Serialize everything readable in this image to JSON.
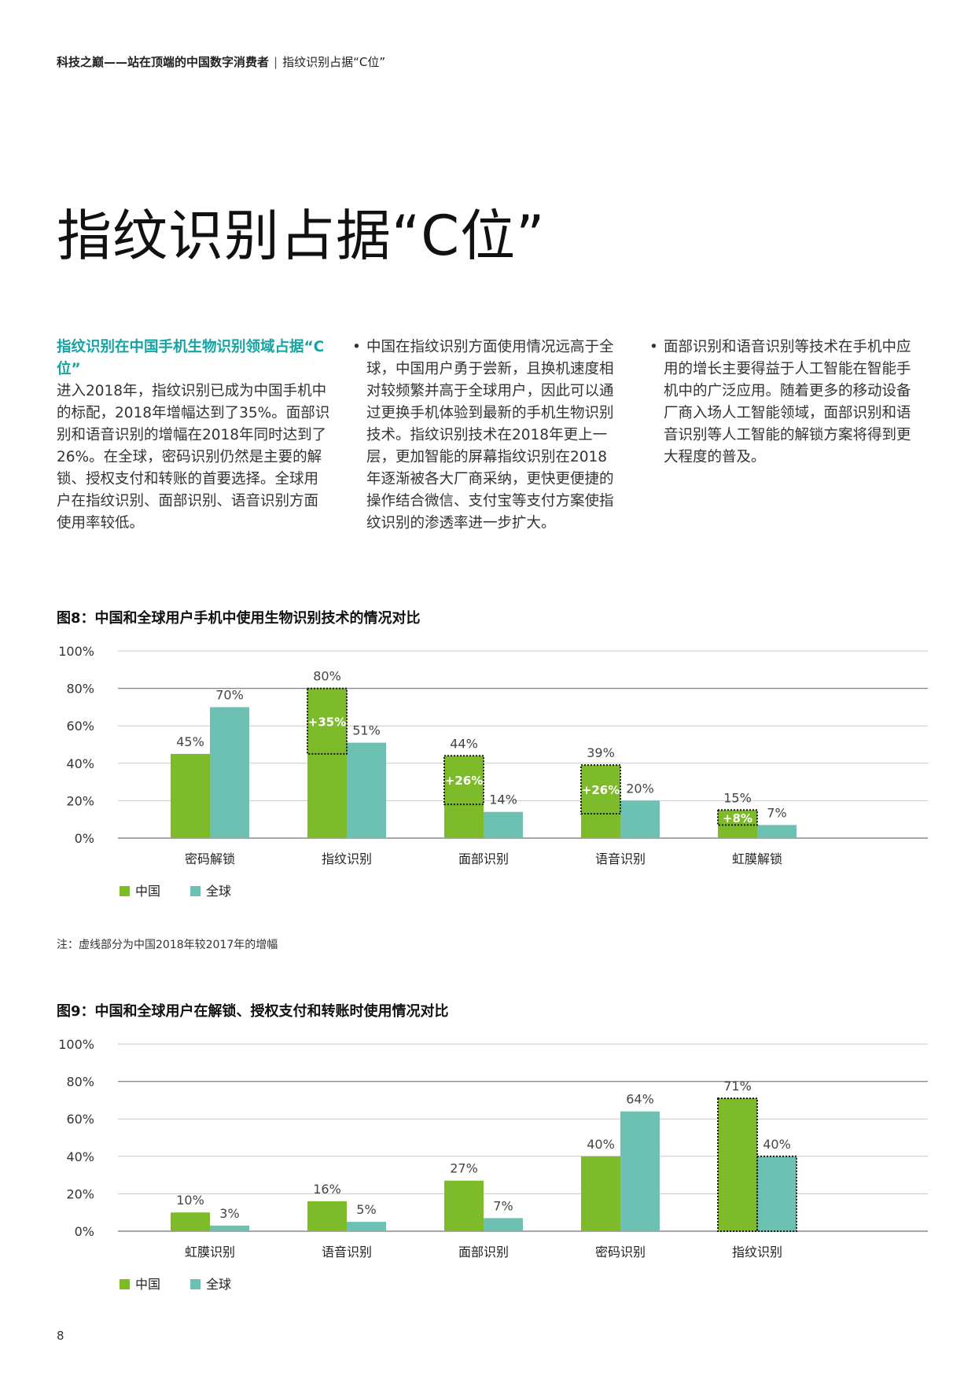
{
  "running_head": {
    "bold": "科技之巅——站在顶端的中国数字消费者",
    "separator": "|",
    "section": "指纹识别占据“C位”"
  },
  "page_title": "指纹识别占据“C位”",
  "columns": {
    "col1": {
      "heading": "指纹识别在中国手机生物识别领域占据“C位”",
      "body": "进入2018年，指纹识别已成为中国手机中的标配，2018年增幅达到了35%。面部识别和语音识别的增幅在2018年同时达到了26%。在全球，密码识别仍然是主要的解锁、授权支付和转账的首要选择。全球用户在指纹识别、面部识别、语音识别方面使用率较低。"
    },
    "col2": {
      "bullet": "中国在指纹识别方面使用情况远高于全球，中国用户勇于尝新，且换机速度相对较频繁并高于全球用户，因此可以通过更换手机体验到最新的手机生物识别技术。指纹识别技术在2018年更上一层，更加智能的屏幕指纹识别在2018年逐渐被各大厂商采纳，更快更便捷的操作结合微信、支付宝等支付方案使指纹识别的渗透率进一步扩大。"
    },
    "col3": {
      "bullet": "面部识别和语音识别等技术在手机中应用的增长主要得益于人工智能在智能手机中的广泛应用。随着更多的移动设备厂商入场人工智能领域，面部识别和语音识别等人工智能的解锁方案将得到更大程度的普及。"
    }
  },
  "figure8": {
    "title": "图8：中国和全球用户手机中使用生物识别技术的情况对比",
    "note": "注：虚线部分为中国2018年较2017年的增幅"
  },
  "figure9": {
    "title": "图9：中国和全球用户在解锁、授权支付和转账时使用情况对比"
  },
  "page_number": "8",
  "chart_data": [
    {
      "type": "bar",
      "categories": [
        "密码解锁",
        "指纹识别",
        "面部识别",
        "语音识别",
        "虹膜解锁"
      ],
      "series": [
        {
          "name": "中国",
          "values": [
            45,
            80,
            44,
            39,
            15
          ],
          "value_labels": [
            "45%",
            "80%",
            "44%",
            "39%",
            "15%"
          ],
          "color": "#7dbb2b"
        },
        {
          "name": "全球",
          "values": [
            70,
            51,
            14,
            20,
            7
          ],
          "value_labels": [
            "70%",
            "51%",
            "14%",
            "20%",
            "7%"
          ],
          "color": "#6cc1b3"
        }
      ],
      "increments": [
        null,
        {
          "value": 35,
          "label": "+35%"
        },
        {
          "value": 26,
          "label": "+26%"
        },
        {
          "value": 26,
          "label": "+26%"
        },
        {
          "value": 8,
          "label": "+8%"
        }
      ],
      "y_ticks": [
        "0%",
        "20%",
        "40%",
        "60%",
        "80%",
        "100%"
      ],
      "ylim": [
        0,
        100
      ],
      "grid": true,
      "legend": "bottom-left"
    },
    {
      "type": "bar",
      "categories": [
        "虹膜识别",
        "语音识别",
        "面部识别",
        "密码识别",
        "指纹识别"
      ],
      "series": [
        {
          "name": "中国",
          "values": [
            10,
            16,
            27,
            40,
            71
          ],
          "value_labels": [
            "10%",
            "16%",
            "27%",
            "40%",
            "71%"
          ],
          "color": "#7dbb2b"
        },
        {
          "name": "全球",
          "values": [
            3,
            5,
            7,
            64,
            40
          ],
          "value_labels": [
            "3%",
            "5%",
            "7%",
            "64%",
            "40%"
          ],
          "color": "#6cc1b3"
        }
      ],
      "highlight_category": "指纹识别",
      "y_ticks": [
        "0%",
        "20%",
        "40%",
        "60%",
        "80%",
        "100%"
      ],
      "ylim": [
        0,
        100
      ],
      "grid": true,
      "legend": "bottom-left"
    }
  ]
}
